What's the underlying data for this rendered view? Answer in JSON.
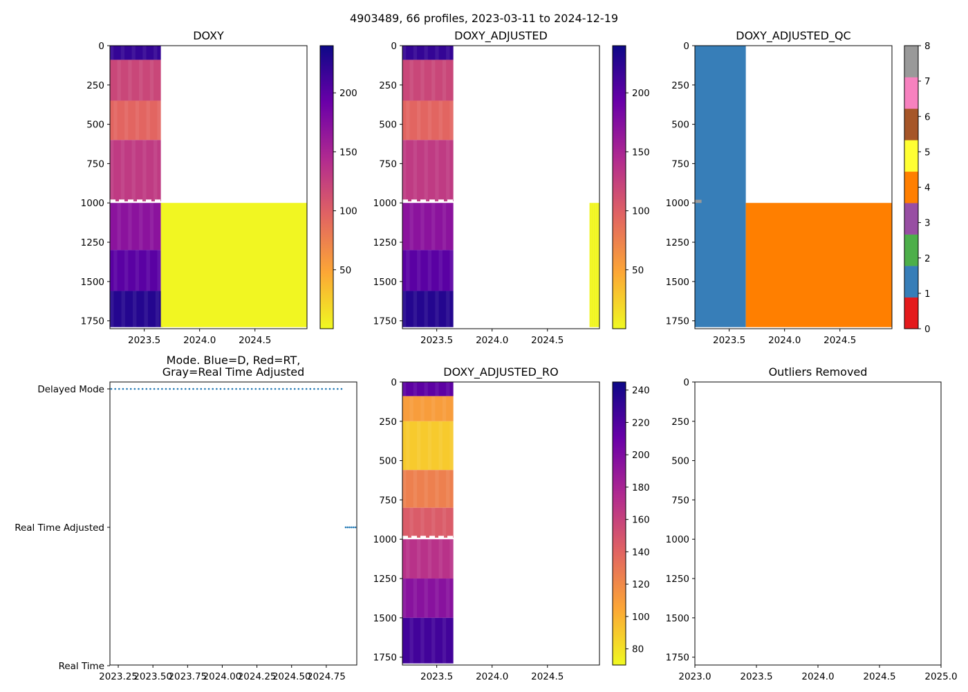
{
  "suptitle": "4903489, 66 profiles, 2023-03-11 to 2024-12-19",
  "colormaps": {
    "plasma_r": [
      "#f0f921",
      "#fca636",
      "#e16462",
      "#b12a90",
      "#6a00a8",
      "#0d0887"
    ],
    "qc_palette": [
      "#e41a1c",
      "#377eb8",
      "#4daf4a",
      "#984ea3",
      "#ff7f00",
      "#ffff33",
      "#a65628",
      "#f781bf",
      "#999999"
    ],
    "delayed_marker_color": "#1f77b4"
  },
  "chart_data": [
    {
      "id": "doxy",
      "type": "heatmap",
      "title": "DOXY",
      "xlim": [
        2023.19,
        2024.97
      ],
      "ylim": [
        0,
        1800
      ],
      "y_inverted": true,
      "xticks": [
        2023.5,
        2024.0,
        2024.5
      ],
      "xtick_labels": [
        "2023.5",
        "2024.0",
        "2024.5"
      ],
      "yticks": [
        0,
        250,
        500,
        750,
        1000,
        1250,
        1500,
        1750
      ],
      "ytick_labels": [
        "0",
        "250",
        "500",
        "750",
        "1000",
        "1250",
        "1500",
        "1750"
      ],
      "colorbar": {
        "cmap": "plasma_r",
        "range": [
          0,
          240
        ],
        "ticks": [
          50,
          100,
          150,
          200
        ],
        "tick_labels": [
          "50",
          "100",
          "150",
          "200"
        ]
      },
      "regions": [
        {
          "x": [
            2023.19,
            2023.65
          ],
          "y": [
            0,
            90
          ],
          "value": 220
        },
        {
          "x": [
            2023.19,
            2023.65
          ],
          "y": [
            90,
            350
          ],
          "value": 120
        },
        {
          "x": [
            2023.19,
            2023.65
          ],
          "y": [
            350,
            600
          ],
          "value": 95
        },
        {
          "x": [
            2023.19,
            2023.65
          ],
          "y": [
            600,
            990
          ],
          "value": 130
        },
        {
          "x": [
            2023.19,
            2023.65
          ],
          "y": [
            1000,
            1300
          ],
          "value": 170
        },
        {
          "x": [
            2023.19,
            2023.65
          ],
          "y": [
            1300,
            1560
          ],
          "value": 200
        },
        {
          "x": [
            2023.19,
            2023.67
          ],
          "y": [
            1560,
            1790
          ],
          "value": 228
        },
        {
          "x": [
            2023.65,
            2024.97
          ],
          "y": [
            1000,
            1790
          ],
          "value": 2
        }
      ],
      "gaps_y": [
        985
      ]
    },
    {
      "id": "doxy_adjusted",
      "type": "heatmap",
      "title": "DOXY_ADJUSTED",
      "xlim": [
        2023.19,
        2024.97
      ],
      "ylim": [
        0,
        1800
      ],
      "y_inverted": true,
      "xticks": [
        2023.5,
        2024.0,
        2024.5
      ],
      "xtick_labels": [
        "2023.5",
        "2024.0",
        "2024.5"
      ],
      "yticks": [
        0,
        250,
        500,
        750,
        1000,
        1250,
        1500,
        1750
      ],
      "ytick_labels": [
        "0",
        "250",
        "500",
        "750",
        "1000",
        "1250",
        "1500",
        "1750"
      ],
      "colorbar": {
        "cmap": "plasma_r",
        "range": [
          0,
          240
        ],
        "ticks": [
          50,
          100,
          150,
          200
        ],
        "tick_labels": [
          "50",
          "100",
          "150",
          "200"
        ]
      },
      "regions": [
        {
          "x": [
            2023.19,
            2023.65
          ],
          "y": [
            0,
            90
          ],
          "value": 220
        },
        {
          "x": [
            2023.19,
            2023.65
          ],
          "y": [
            90,
            350
          ],
          "value": 120
        },
        {
          "x": [
            2023.19,
            2023.65
          ],
          "y": [
            350,
            600
          ],
          "value": 95
        },
        {
          "x": [
            2023.19,
            2023.65
          ],
          "y": [
            600,
            990
          ],
          "value": 130
        },
        {
          "x": [
            2023.19,
            2023.65
          ],
          "y": [
            1000,
            1300
          ],
          "value": 170
        },
        {
          "x": [
            2023.19,
            2023.65
          ],
          "y": [
            1300,
            1560
          ],
          "value": 200
        },
        {
          "x": [
            2023.19,
            2023.65
          ],
          "y": [
            1560,
            1790
          ],
          "value": 228
        },
        {
          "x": [
            2024.88,
            2024.97
          ],
          "y": [
            1000,
            1790
          ],
          "value": 2
        }
      ],
      "gaps_y": [
        985
      ]
    },
    {
      "id": "doxy_adjusted_qc",
      "type": "heatmap",
      "title": "DOXY_ADJUSTED_QC",
      "xlim": [
        2023.19,
        2024.97
      ],
      "ylim": [
        0,
        1800
      ],
      "y_inverted": true,
      "xticks": [
        2023.5,
        2024.0,
        2024.5
      ],
      "xtick_labels": [
        "2023.5",
        "2024.0",
        "2024.5"
      ],
      "yticks": [
        0,
        250,
        500,
        750,
        1000,
        1250,
        1500,
        1750
      ],
      "ytick_labels": [
        "0",
        "250",
        "500",
        "750",
        "1000",
        "1250",
        "1500",
        "1750"
      ],
      "colorbar": {
        "cmap": "qc",
        "range": [
          0,
          8
        ],
        "ticks": [
          0,
          1,
          2,
          3,
          4,
          5,
          6,
          7,
          8
        ],
        "tick_labels": [
          "0",
          "1",
          "2",
          "3",
          "4",
          "5",
          "6",
          "7",
          "8"
        ]
      },
      "regions": [
        {
          "x": [
            2023.19,
            2023.65
          ],
          "y": [
            0,
            1790
          ],
          "qc": 1
        },
        {
          "x": [
            2023.19,
            2023.25
          ],
          "y": [
            980,
            1000
          ],
          "qc": 8
        },
        {
          "x": [
            2023.65,
            2024.97
          ],
          "y": [
            1000,
            1790
          ],
          "qc": 4
        }
      ]
    },
    {
      "id": "mode",
      "type": "scatter",
      "title": "Mode. Blue=D, Red=RT,\nGray=Real Time Adjusted",
      "xlim": [
        2023.19,
        2024.97
      ],
      "xticks": [
        2023.25,
        2023.5,
        2023.75,
        2024.0,
        2024.25,
        2024.5,
        2024.75
      ],
      "xtick_labels": [
        "2023.25",
        "2023.50",
        "2023.75",
        "2024.00",
        "2024.25",
        "2024.50",
        "2024.75"
      ],
      "categories": [
        "Delayed Mode",
        "Real Time Adjusted",
        "Real Time"
      ],
      "series": [
        {
          "name": "Delayed Mode",
          "level": 0,
          "x_start": 2023.2,
          "x_end": 2024.86,
          "count": 60
        },
        {
          "name": "Real Time Adjusted",
          "level": 1,
          "x_start": 2024.89,
          "x_end": 2024.96,
          "count": 6
        }
      ]
    },
    {
      "id": "doxy_adjusted_ro",
      "type": "heatmap",
      "title": "DOXY_ADJUSTED_RO",
      "xlim": [
        2023.19,
        2024.97
      ],
      "ylim": [
        0,
        1800
      ],
      "y_inverted": true,
      "xticks": [
        2023.5,
        2024.0,
        2024.5
      ],
      "xtick_labels": [
        "2023.5",
        "2024.0",
        "2024.5"
      ],
      "yticks": [
        0,
        250,
        500,
        750,
        1000,
        1250,
        1500,
        1750
      ],
      "ytick_labels": [
        "0",
        "250",
        "500",
        "750",
        "1000",
        "1250",
        "1500",
        "1750"
      ],
      "colorbar": {
        "cmap": "plasma_r",
        "range": [
          70,
          245
        ],
        "ticks": [
          80,
          100,
          120,
          140,
          160,
          180,
          200,
          220,
          240
        ],
        "tick_labels": [
          "80",
          "100",
          "120",
          "140",
          "160",
          "180",
          "200",
          "220",
          "240"
        ]
      },
      "regions": [
        {
          "x": [
            2023.19,
            2023.65
          ],
          "y": [
            0,
            90
          ],
          "value": 215
        },
        {
          "x": [
            2023.19,
            2023.65
          ],
          "y": [
            90,
            250
          ],
          "value": 110
        },
        {
          "x": [
            2023.19,
            2023.65
          ],
          "y": [
            250,
            560
          ],
          "value": 90
        },
        {
          "x": [
            2023.19,
            2023.65
          ],
          "y": [
            560,
            800
          ],
          "value": 125
        },
        {
          "x": [
            2023.19,
            2023.65
          ],
          "y": [
            800,
            990
          ],
          "value": 145
        },
        {
          "x": [
            2023.19,
            2023.65
          ],
          "y": [
            1000,
            1250
          ],
          "value": 170
        },
        {
          "x": [
            2023.19,
            2023.65
          ],
          "y": [
            1250,
            1500
          ],
          "value": 195
        },
        {
          "x": [
            2023.19,
            2023.65
          ],
          "y": [
            1500,
            1790
          ],
          "value": 225
        }
      ],
      "gaps_y": [
        985
      ]
    },
    {
      "id": "outliers_removed",
      "type": "scatter",
      "title": "Outliers Removed",
      "xlim": [
        2023.0,
        2025.0
      ],
      "ylim": [
        0,
        1800
      ],
      "y_inverted": true,
      "xticks": [
        2023.0,
        2023.5,
        2024.0,
        2024.5,
        2025.0
      ],
      "xtick_labels": [
        "2023.0",
        "2023.5",
        "2024.0",
        "2024.5",
        "2025.0"
      ],
      "yticks": [
        0,
        250,
        500,
        750,
        1000,
        1250,
        1500,
        1750
      ],
      "ytick_labels": [
        "0",
        "250",
        "500",
        "750",
        "1000",
        "1250",
        "1500",
        "1750"
      ],
      "points": []
    }
  ]
}
